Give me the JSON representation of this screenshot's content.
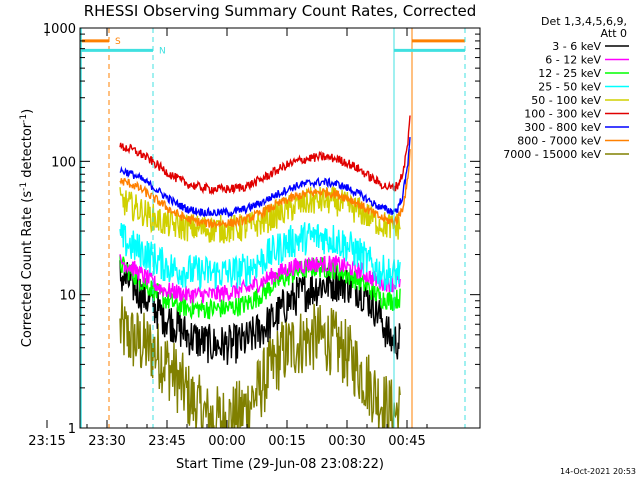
{
  "chart_data": {
    "type": "line",
    "title": "RHESSI Observing Summary Count Rates, Corrected",
    "xlabel": "Start Time (29-Jun-08 23:08:22)",
    "ylabel_main": "Corrected Count Rate (s",
    "ylabel_sup1": "-1",
    "ylabel_mid": " detector",
    "ylabel_sup2": "-1",
    "ylabel_end": ")",
    "y_scale": "log",
    "ylim": [
      1,
      1000
    ],
    "xlim_minutes": [
      -15,
      57
    ],
    "x_ticks": [
      {
        "label": "23:15",
        "min": -10
      },
      {
        "label": "23:30",
        "min": 5
      },
      {
        "label": "23:45",
        "min": 20
      },
      {
        "label": "00:00",
        "min": 35
      },
      {
        "label": "00:15",
        "min": 50
      },
      {
        "label": "00:30",
        "min": 65
      },
      {
        "label": "00:45",
        "min": 80
      }
    ],
    "y_ticks": [
      {
        "label": "1",
        "value": 1
      },
      {
        "label": "10",
        "value": 10
      },
      {
        "label": "100",
        "value": 100
      },
      {
        "label": "1000",
        "value": 1000
      }
    ],
    "legend_header": [
      "Det 1,3,4,5,6,9,",
      "Att 0"
    ],
    "legend_position": "right",
    "series": [
      {
        "name": "3 - 6 keV",
        "color": "#000000",
        "pts": [
          [
            23.3,
            14
          ],
          [
            23.5,
            13
          ],
          [
            23.8,
            12
          ],
          [
            24.2,
            10
          ],
          [
            24.6,
            8.5
          ],
          [
            25.0,
            7
          ],
          [
            25.5,
            6
          ],
          [
            26.0,
            5
          ],
          [
            26.5,
            4.5
          ],
          [
            27.0,
            4.2
          ],
          [
            27.8,
            4.2
          ],
          [
            28.4,
            4.5
          ],
          [
            29.0,
            5.5
          ],
          [
            29.5,
            6.5
          ],
          [
            30.0,
            8.5
          ],
          [
            30.5,
            10
          ],
          [
            31.0,
            11
          ],
          [
            31.5,
            12
          ],
          [
            32.0,
            12.5
          ],
          [
            32.5,
            12
          ],
          [
            33.0,
            11
          ],
          [
            33.4,
            9
          ],
          [
            33.8,
            7
          ],
          [
            34.1,
            5
          ],
          [
            34.3,
            4.5
          ],
          [
            34.6,
            4.5
          ]
        ]
      },
      {
        "name": "6 - 12 keV",
        "color": "#ff00ff",
        "pts": [
          [
            23.3,
            18
          ],
          [
            23.5,
            17
          ],
          [
            23.8,
            16
          ],
          [
            24.2,
            14
          ],
          [
            24.6,
            12.5
          ],
          [
            25.0,
            11
          ],
          [
            25.5,
            10.5
          ],
          [
            26.0,
            10
          ],
          [
            27.0,
            10
          ],
          [
            27.8,
            10.5
          ],
          [
            28.4,
            11
          ],
          [
            29.0,
            12.5
          ],
          [
            29.5,
            14
          ],
          [
            30.0,
            15.5
          ],
          [
            30.5,
            16.5
          ],
          [
            31.0,
            17
          ],
          [
            31.5,
            17
          ],
          [
            32.0,
            17
          ],
          [
            32.5,
            16
          ],
          [
            33.0,
            15
          ],
          [
            33.4,
            13.5
          ],
          [
            33.8,
            12.5
          ],
          [
            34.3,
            12
          ],
          [
            34.6,
            12.5
          ]
        ]
      },
      {
        "name": "12 - 25 keV",
        "color": "#00ff00",
        "pts": [
          [
            23.3,
            17
          ],
          [
            23.5,
            16
          ],
          [
            23.8,
            14.5
          ],
          [
            24.2,
            12.5
          ],
          [
            24.6,
            11
          ],
          [
            25.0,
            9.5
          ],
          [
            25.5,
            8.5
          ],
          [
            26.0,
            8
          ],
          [
            27.0,
            7.8
          ],
          [
            27.8,
            8
          ],
          [
            28.4,
            8.5
          ],
          [
            29.0,
            10
          ],
          [
            29.5,
            12
          ],
          [
            30.0,
            13.5
          ],
          [
            30.5,
            15
          ],
          [
            31.0,
            16
          ],
          [
            31.5,
            16
          ],
          [
            32.0,
            15.5
          ],
          [
            32.5,
            14
          ],
          [
            33.0,
            12.5
          ],
          [
            33.4,
            11
          ],
          [
            33.8,
            9.5
          ],
          [
            34.3,
            9
          ],
          [
            34.6,
            9.5
          ]
        ]
      },
      {
        "name": "25 - 50 keV",
        "color": "#00ffff",
        "pts": [
          [
            23.3,
            27
          ],
          [
            23.5,
            25
          ],
          [
            23.8,
            23
          ],
          [
            24.2,
            21
          ],
          [
            24.6,
            19
          ],
          [
            25.0,
            17
          ],
          [
            25.5,
            15.5
          ],
          [
            26.0,
            15
          ],
          [
            27.0,
            14.5
          ],
          [
            27.8,
            14.5
          ],
          [
            28.4,
            15.5
          ],
          [
            29.0,
            18
          ],
          [
            29.5,
            21
          ],
          [
            30.0,
            24
          ],
          [
            30.5,
            26
          ],
          [
            31.0,
            27
          ],
          [
            31.5,
            27
          ],
          [
            32.0,
            26
          ],
          [
            32.5,
            23
          ],
          [
            33.0,
            20
          ],
          [
            33.4,
            17
          ],
          [
            33.8,
            15
          ],
          [
            34.3,
            14
          ],
          [
            34.6,
            15
          ]
        ]
      },
      {
        "name": "50 - 100 keV",
        "color": "#d0d000",
        "pts": [
          [
            23.3,
            50
          ],
          [
            23.5,
            49
          ],
          [
            23.8,
            46
          ],
          [
            24.2,
            42
          ],
          [
            24.6,
            38
          ],
          [
            25.0,
            35
          ],
          [
            25.5,
            33
          ],
          [
            26.0,
            32
          ],
          [
            27.0,
            31
          ],
          [
            27.8,
            31
          ],
          [
            28.4,
            32
          ],
          [
            29.0,
            35
          ],
          [
            29.5,
            39
          ],
          [
            30.0,
            43
          ],
          [
            30.5,
            47
          ],
          [
            31.0,
            50
          ],
          [
            31.5,
            51
          ],
          [
            32.0,
            50
          ],
          [
            32.5,
            46
          ],
          [
            33.0,
            42
          ],
          [
            33.4,
            38
          ],
          [
            33.8,
            34
          ],
          [
            34.3,
            32
          ],
          [
            34.6,
            33
          ]
        ]
      },
      {
        "name": "100 - 300 keV",
        "color": "#e00000",
        "pts": [
          [
            23.3,
            128
          ],
          [
            23.5,
            127
          ],
          [
            23.8,
            122
          ],
          [
            24.2,
            112
          ],
          [
            24.6,
            100
          ],
          [
            25.0,
            88
          ],
          [
            25.5,
            76
          ],
          [
            26.0,
            68
          ],
          [
            26.5,
            64
          ],
          [
            27.0,
            62
          ],
          [
            27.8,
            62
          ],
          [
            28.4,
            65
          ],
          [
            29.0,
            73
          ],
          [
            29.5,
            83
          ],
          [
            30.0,
            93
          ],
          [
            30.5,
            101
          ],
          [
            31.0,
            106
          ],
          [
            31.5,
            108
          ],
          [
            32.0,
            105
          ],
          [
            32.5,
            97
          ],
          [
            33.0,
            86
          ],
          [
            33.4,
            76
          ],
          [
            33.8,
            68
          ],
          [
            34.1,
            64
          ],
          [
            34.3,
            63
          ],
          [
            34.5,
            66
          ],
          [
            34.7,
            80
          ],
          [
            34.9,
            130
          ],
          [
            35.0,
            210
          ]
        ]
      },
      {
        "name": "300 - 800 keV",
        "color": "#0000ff",
        "pts": [
          [
            23.3,
            85
          ],
          [
            23.5,
            84
          ],
          [
            23.8,
            80
          ],
          [
            24.2,
            73
          ],
          [
            24.6,
            65
          ],
          [
            25.0,
            57
          ],
          [
            25.5,
            49
          ],
          [
            26.0,
            44
          ],
          [
            26.5,
            42
          ],
          [
            27.0,
            41
          ],
          [
            27.8,
            41.5
          ],
          [
            28.4,
            44
          ],
          [
            29.0,
            49
          ],
          [
            29.5,
            55
          ],
          [
            30.0,
            61
          ],
          [
            30.5,
            66
          ],
          [
            31.0,
            69
          ],
          [
            31.5,
            70
          ],
          [
            32.0,
            68
          ],
          [
            32.5,
            63
          ],
          [
            33.0,
            56
          ],
          [
            33.4,
            50
          ],
          [
            33.8,
            45
          ],
          [
            34.3,
            42
          ],
          [
            34.5,
            44
          ],
          [
            34.7,
            55
          ],
          [
            34.9,
            90
          ],
          [
            35.0,
            160
          ]
        ]
      },
      {
        "name": "800 - 7000 keV",
        "color": "#ff8000",
        "pts": [
          [
            23.3,
            71
          ],
          [
            23.5,
            70
          ],
          [
            23.8,
            67
          ],
          [
            24.2,
            61
          ],
          [
            24.6,
            54
          ],
          [
            25.0,
            48
          ],
          [
            25.5,
            41
          ],
          [
            26.0,
            37
          ],
          [
            26.5,
            35
          ],
          [
            27.0,
            34
          ],
          [
            27.8,
            34.5
          ],
          [
            28.4,
            36.5
          ],
          [
            29.0,
            41
          ],
          [
            29.5,
            46
          ],
          [
            30.0,
            51
          ],
          [
            30.5,
            55
          ],
          [
            31.0,
            58
          ],
          [
            31.5,
            59
          ],
          [
            32.0,
            57
          ],
          [
            32.5,
            53
          ],
          [
            33.0,
            47
          ],
          [
            33.4,
            42
          ],
          [
            33.8,
            38
          ],
          [
            34.3,
            35
          ],
          [
            34.5,
            37
          ],
          [
            34.7,
            45
          ],
          [
            34.9,
            70
          ],
          [
            35.0,
            120
          ]
        ]
      },
      {
        "name": "7000 - 15000 keV",
        "color": "#808000",
        "pts": [
          [
            23.3,
            5.5
          ],
          [
            23.7,
            4.8
          ],
          [
            24.2,
            4.2
          ],
          [
            24.7,
            3.8
          ],
          [
            25.2,
            3.0
          ],
          [
            25.7,
            2.2
          ],
          [
            26.2,
            1.6
          ],
          [
            26.8,
            1.2
          ],
          [
            27.5,
            1.15
          ],
          [
            28.2,
            1.3
          ],
          [
            28.8,
            1.8
          ],
          [
            29.3,
            2.6
          ],
          [
            29.8,
            3.6
          ],
          [
            30.3,
            4.2
          ],
          [
            30.8,
            4.6
          ],
          [
            31.3,
            4.8
          ],
          [
            31.8,
            4.5
          ],
          [
            32.3,
            3.8
          ],
          [
            32.8,
            3.0
          ],
          [
            33.3,
            2.2
          ],
          [
            33.8,
            1.6
          ],
          [
            34.3,
            1.3
          ],
          [
            34.6,
            1.3
          ]
        ]
      }
    ],
    "overlays": [
      {
        "label": "S",
        "color": "#ff8000",
        "dash_min": -11.7,
        "bar_from_min": -15,
        "bar_to_min": -12.3,
        "bar_value": 800
      },
      {
        "label": "N",
        "color": "#40e0e0",
        "dash_min": 4.5,
        "bar_from_min": -15,
        "bar_to_min": 3.9,
        "bar_value": 680
      }
    ],
    "overlay_right": [
      {
        "color": "#ff8000",
        "from_min": 65,
        "to_min": 80.3,
        "value": 800,
        "solid_min": 65,
        "dash_min": 80.3
      },
      {
        "color": "#40e0e0",
        "from_min": 64.2,
        "to_min": 80.3,
        "value": 680,
        "solid_min": 64.2,
        "dash_min": 80.3
      }
    ],
    "timestamp": "14-Oct-2021 20:53"
  }
}
